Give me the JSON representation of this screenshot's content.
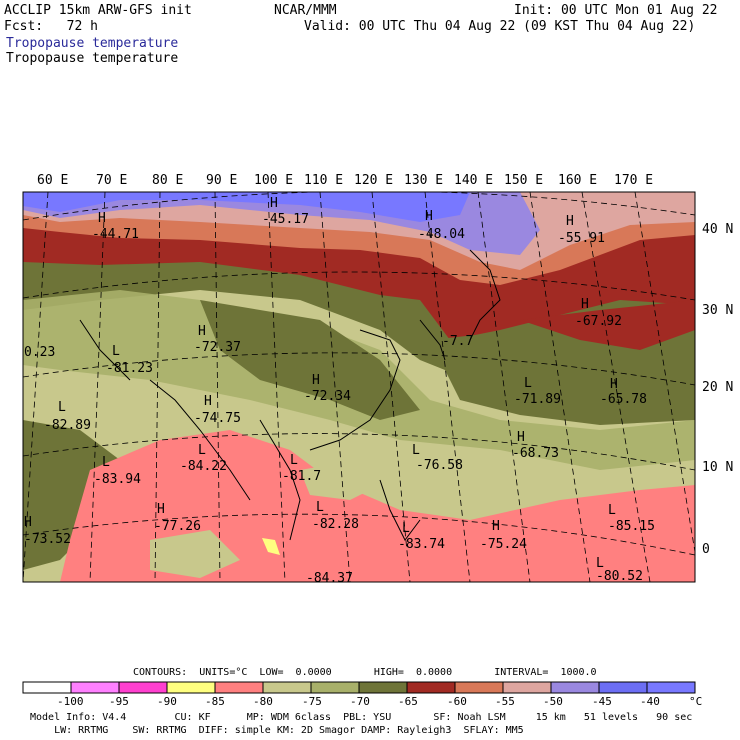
{
  "header": {
    "model": "ACCLIP 15km ARW-GFS init",
    "center": "NCAR/MMM",
    "init": "Init: 00 UTC Mon 01 Aug 22",
    "fcst": "Fcst:   72 h",
    "valid": "Valid: 00 UTC Thu 04 Aug 22 (09 KST Thu 04 Aug 22)",
    "field_title_1": "Tropopause temperature",
    "field_title_2": "Tropopause temperature"
  },
  "map": {
    "lon_labels": [
      "60 E",
      "70 E",
      "80 E",
      "90 E",
      "100 E",
      "110 E",
      "120 E",
      "130 E",
      "140 E",
      "150 E",
      "160 E",
      "170 E"
    ],
    "lat_labels": [
      "40 N",
      "30 N",
      "20 N",
      "10 N",
      "0"
    ],
    "extrema": [
      {
        "sym": "H",
        "val": "-44.71"
      },
      {
        "sym": "H",
        "val": "-45.17"
      },
      {
        "sym": "H",
        "val": "-48.04"
      },
      {
        "sym": "H",
        "val": "-55.91"
      },
      {
        "sym": "H",
        "val": "-67.92"
      },
      {
        "sym": "H",
        "val": "-65.78"
      },
      {
        "sym": "L",
        "val": "-71.89"
      },
      {
        "sym": "H",
        "val": "-68.73"
      },
      {
        "sym": "H",
        "val": "-72.37"
      },
      {
        "sym": "L",
        "val": "-81.23"
      },
      {
        "sym": "H",
        "val": "-72.34"
      },
      {
        "sym": "H",
        "val": "-74.75"
      },
      {
        "sym": "L",
        "val": "-82.89"
      },
      {
        "sym": "L",
        "val": "-83.94"
      },
      {
        "sym": "L",
        "val": "-84.22"
      },
      {
        "sym": "L",
        "val": "-81.7"
      },
      {
        "sym": "L",
        "val": "-76.58"
      },
      {
        "sym": "H",
        "val": "-77.26"
      },
      {
        "sym": "L",
        "val": "-82.28"
      },
      {
        "sym": "L",
        "val": "-83.74"
      },
      {
        "sym": "H",
        "val": "-75.24"
      },
      {
        "sym": "L",
        "val": "-85.15"
      },
      {
        "sym": "H",
        "val": "-73.52"
      },
      {
        "sym": "L",
        "val": "-80.52"
      },
      {
        "sym": "",
        "val": "-84.37"
      },
      {
        "sym": "",
        "val": "0.23"
      },
      {
        "sym": "",
        "val": "-7.7"
      }
    ]
  },
  "contours": {
    "line": "CONTOURS:  UNITS=°C  LOW=  0.0000       HIGH=  0.0000       INTERVAL=  1000.0"
  },
  "colorbar": {
    "labels": [
      "-100",
      "-95",
      "-90",
      "-85",
      "-80",
      "-75",
      "-70",
      "-65",
      "-60",
      "-55",
      "-50",
      "-45",
      "-40",
      "°C"
    ],
    "colors": [
      "#ffffff",
      "#ff80ff",
      "#ff40cf",
      "#ffff80",
      "#ff8080",
      "#c8c88c",
      "#a8b06a",
      "#6e7438",
      "#a12a23",
      "#d87858",
      "#dea6a0",
      "#9a88e0",
      "#6c6ef4",
      "#7878ff"
    ]
  },
  "footer": {
    "line1": "Model Info: V4.4        CU: KF      MP: WDM 6class  PBL: YSU       SF: Noah LSM     15 km   51 levels   90 sec",
    "line2": "    LW: RRTMG    SW: RRTMG  DIFF: simple KM: 2D Smagor DAMP: Rayleigh3  SFLAY: MM5"
  }
}
